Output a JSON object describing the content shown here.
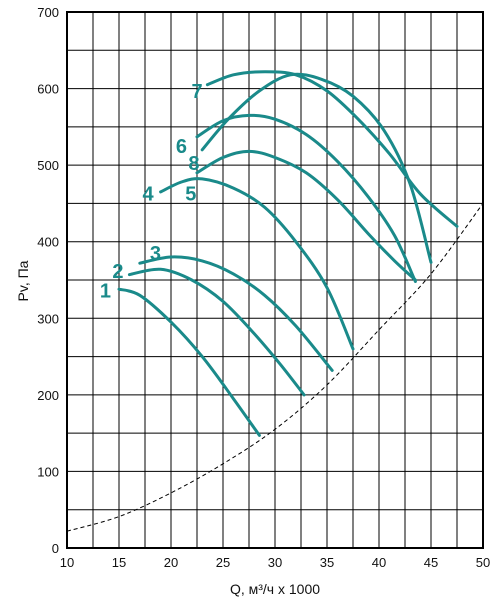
{
  "chart_data": {
    "type": "line",
    "xlabel": "Q, м³/ч x 1000",
    "ylabel": "Pv, Па",
    "xlim": [
      10,
      50
    ],
    "ylim": [
      0,
      700
    ],
    "x_ticks": [
      10,
      15,
      20,
      25,
      30,
      35,
      40,
      45,
      50
    ],
    "y_ticks": [
      0,
      100,
      200,
      300,
      400,
      500,
      600,
      700
    ],
    "grid": true,
    "series_color": "#1a8a8a",
    "series": [
      {
        "name": "1",
        "label_at": [
          13.7,
          336
        ],
        "x": [
          15,
          17,
          20,
          23,
          26,
          28.5
        ],
        "y": [
          338,
          330,
          295,
          250,
          195,
          147
        ]
      },
      {
        "name": "2",
        "label_at": [
          14.9,
          362
        ],
        "x": [
          16,
          19,
          22,
          25,
          28,
          30.5,
          32.8
        ],
        "y": [
          357,
          364,
          350,
          322,
          280,
          240,
          200
        ]
      },
      {
        "name": "3",
        "label_at": [
          18.5,
          385
        ],
        "x": [
          17,
          20,
          23,
          26,
          29,
          32,
          35.5
        ],
        "y": [
          372,
          380,
          375,
          358,
          330,
          290,
          232
        ]
      },
      {
        "name": "4",
        "label_at": [
          17.8,
          463
        ],
        "x": [
          19,
          21,
          23,
          26,
          29,
          32,
          35,
          37.5
        ],
        "y": [
          465,
          478,
          482,
          470,
          445,
          400,
          340,
          260
        ]
      },
      {
        "name": "5",
        "label_at": [
          21.9,
          463
        ],
        "x": [
          22.5,
          25,
          27.5,
          30,
          33,
          36,
          39,
          41.5,
          43.5
        ],
        "y": [
          490,
          510,
          518,
          510,
          490,
          455,
          410,
          375,
          350
        ]
      },
      {
        "name": "6",
        "label_at": [
          21.0,
          525
        ],
        "x": [
          22.5,
          25,
          27.5,
          30,
          33,
          36,
          39,
          41.5,
          43.5
        ],
        "y": [
          537,
          558,
          565,
          560,
          540,
          505,
          458,
          408,
          348
        ]
      },
      {
        "name": "7",
        "label_at": [
          22.5,
          597
        ],
        "x": [
          23.5,
          26,
          29,
          32,
          35,
          38,
          41,
          44,
          47.5
        ],
        "y": [
          605,
          618,
          622,
          618,
          597,
          560,
          515,
          462,
          420
        ]
      },
      {
        "name": "8",
        "label_at": [
          22.2,
          503
        ],
        "x": [
          23,
          25.5,
          28.5,
          31.5,
          34.5,
          37.5,
          40.5,
          43,
          45
        ],
        "y": [
          520,
          560,
          597,
          618,
          612,
          590,
          545,
          475,
          373
        ]
      }
    ],
    "network_curve": {
      "style": "dashed",
      "x": [
        10,
        15,
        20,
        25,
        30,
        35,
        40,
        45,
        50
      ],
      "y": [
        22,
        41,
        72,
        110,
        155,
        213,
        285,
        358,
        450
      ]
    }
  }
}
